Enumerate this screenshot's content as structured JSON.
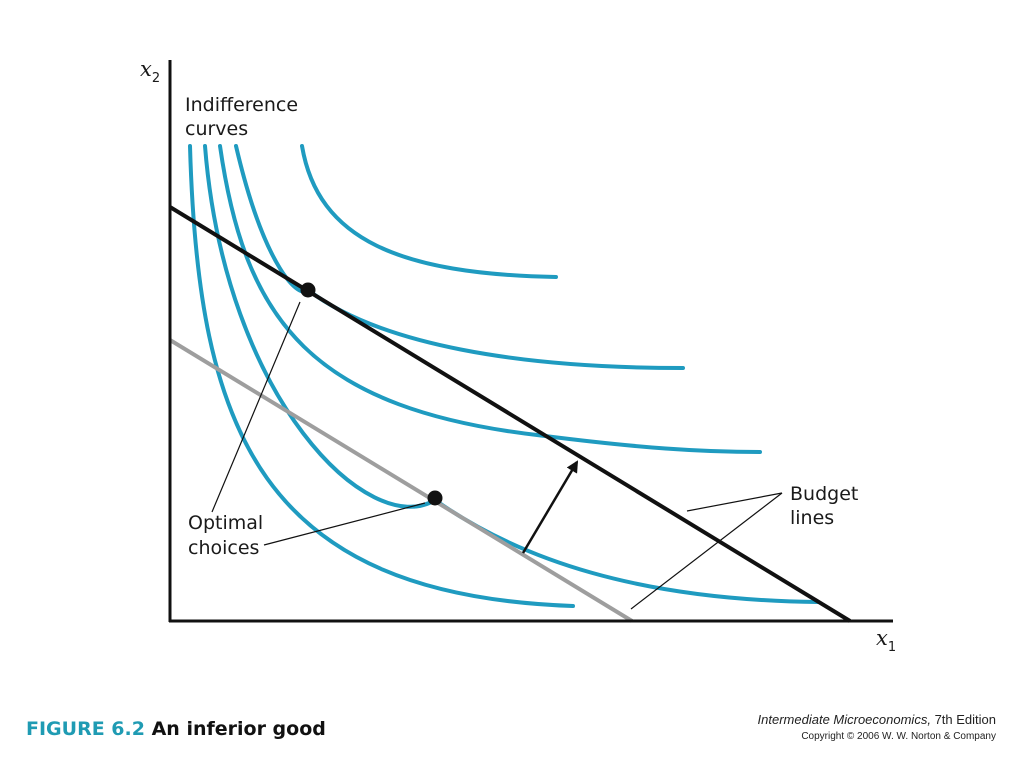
{
  "axes": {
    "y_var": "x",
    "y_sub": "2",
    "x_var": "x",
    "x_sub": "1"
  },
  "labels": {
    "indifference_line1": "Indifference",
    "indifference_line2": "curves",
    "optimal_line1": "Optimal",
    "optimal_line2": "choices",
    "budget_line1": "Budget",
    "budget_line2": "lines"
  },
  "caption": {
    "figure_number": "FIGURE 6.2",
    "figure_title": "An inferior good"
  },
  "credits": {
    "book_title": "Intermediate Microeconomics,",
    "edition": "7th Edition",
    "copyright": "Copyright © 2006 W. W. Norton & Company"
  },
  "colors": {
    "indifference_curve": "#1f9bc0",
    "budget_line_new": "#111111",
    "budget_line_old": "#9e9e9e",
    "caption_accent": "#1f9bb3"
  }
}
